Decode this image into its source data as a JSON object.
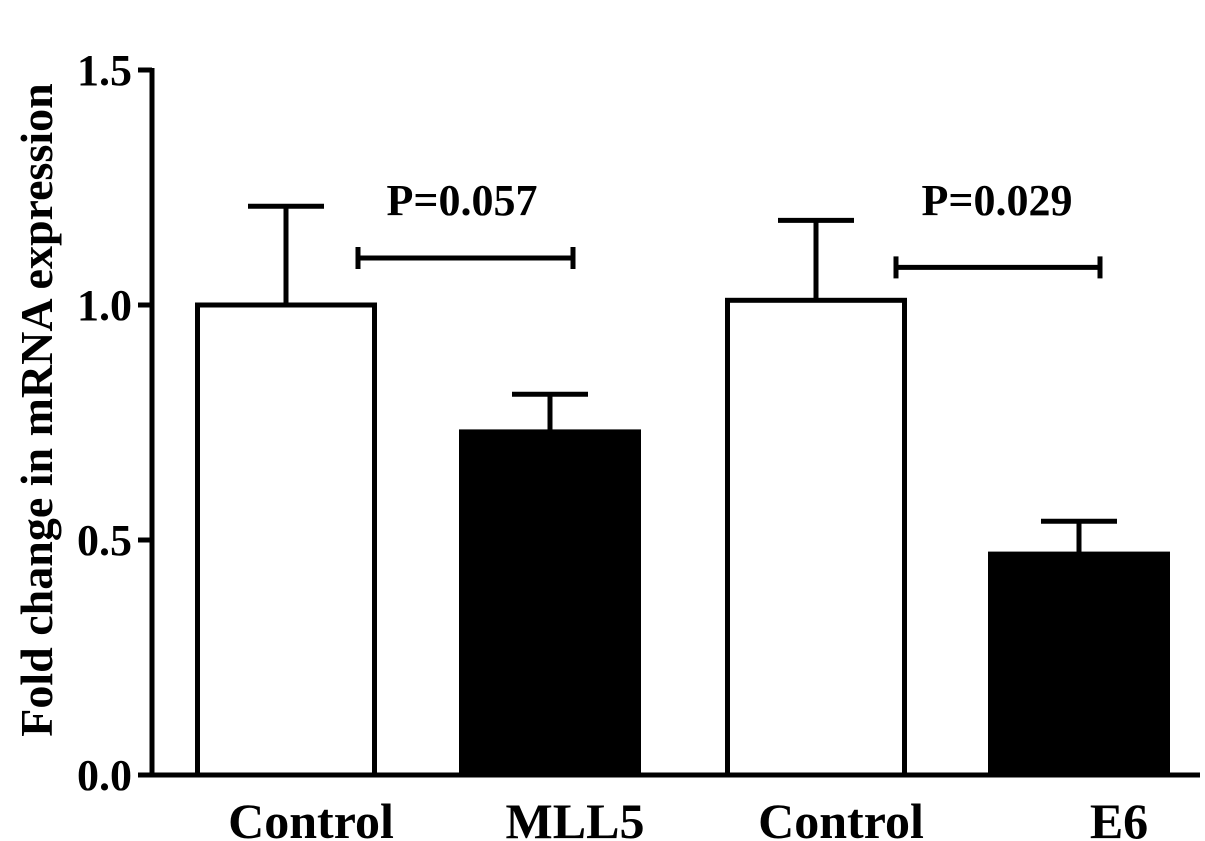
{
  "chart_data": {
    "type": "bar",
    "categories": [
      "Control",
      "MLL5",
      "Control",
      "E6"
    ],
    "values": [
      1.0,
      0.73,
      1.01,
      0.47
    ],
    "errors": [
      0.21,
      0.08,
      0.17,
      0.07
    ],
    "bar_fills": [
      "#ffffff",
      "#000000",
      "#ffffff",
      "#000000"
    ],
    "title": "",
    "xlabel": "",
    "ylabel": "Fold change in mRNA expression",
    "ylim": [
      0,
      1.5
    ],
    "yticks": [
      0.0,
      0.5,
      1.0,
      1.5
    ],
    "ytick_labels": [
      "0.0",
      "0.5",
      "1.0",
      "1.5"
    ],
    "grid": false,
    "annotations": [
      {
        "text": "P=0.057",
        "from_index": 0,
        "to_index": 1,
        "y": 1.1
      },
      {
        "text": "P=0.029",
        "from_index": 2,
        "to_index": 3,
        "y": 1.08
      }
    ]
  }
}
